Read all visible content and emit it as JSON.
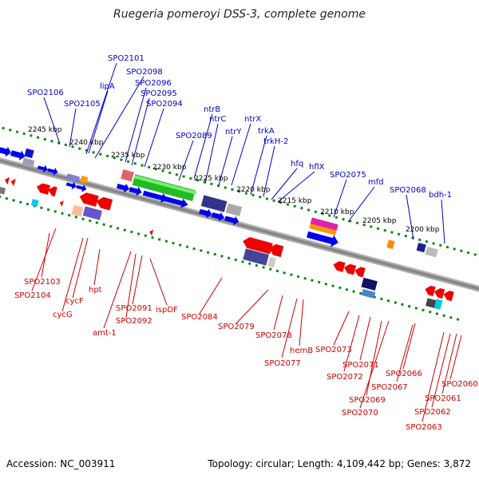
{
  "title": "Ruegeria pomeroyi DSS-3, complete genome",
  "accession": "Accession: NC_003911",
  "summary": "Topology: circular; Length: 4,109,442 bp; Genes: 3,872",
  "scale_ticks": [
    "2245 kbp",
    "2240 kbp",
    "2235 kbp",
    "2230 kbp",
    "2225 kbp",
    "2220 kbp",
    "2215 kbp",
    "2210 kbp",
    "2205 kbp",
    "2200 kbp"
  ],
  "top_genes": [
    "SPO2101",
    "SPO2098",
    "lipA",
    "SPO2096",
    "SPO2106",
    "SPO2095",
    "SPO2105",
    "SPO2094",
    "ntrB",
    "ntrC",
    "ntrX",
    "SPO2089",
    "ntrY",
    "trkA",
    "trkH-2",
    "hfq",
    "hflX",
    "SPO2075",
    "mfd",
    "SPO2068",
    "bdh-1"
  ],
  "bottom_genes": [
    "SPO2103",
    "SPO2104",
    "cycF",
    "cycG",
    "hpt",
    "SPO2091",
    "SPO2092",
    "amt-1",
    "ispDF",
    "SPO2084",
    "SPO2079",
    "SPO2078",
    "hemB",
    "SPO2077",
    "SPO2073",
    "SPO2072",
    "SPO2071",
    "SPO2069",
    "SPO2070",
    "SPO2067",
    "SPO2066",
    "SPO2060",
    "SPO2061",
    "SPO2062",
    "SPO2063"
  ],
  "colors": {
    "forward_strand": "#0000ee",
    "reverse_strand": "#ee0000",
    "top_label": "#0000cc",
    "bottom_label": "#cc0000",
    "backbone": "#808080",
    "scale_dots": "#118811"
  }
}
